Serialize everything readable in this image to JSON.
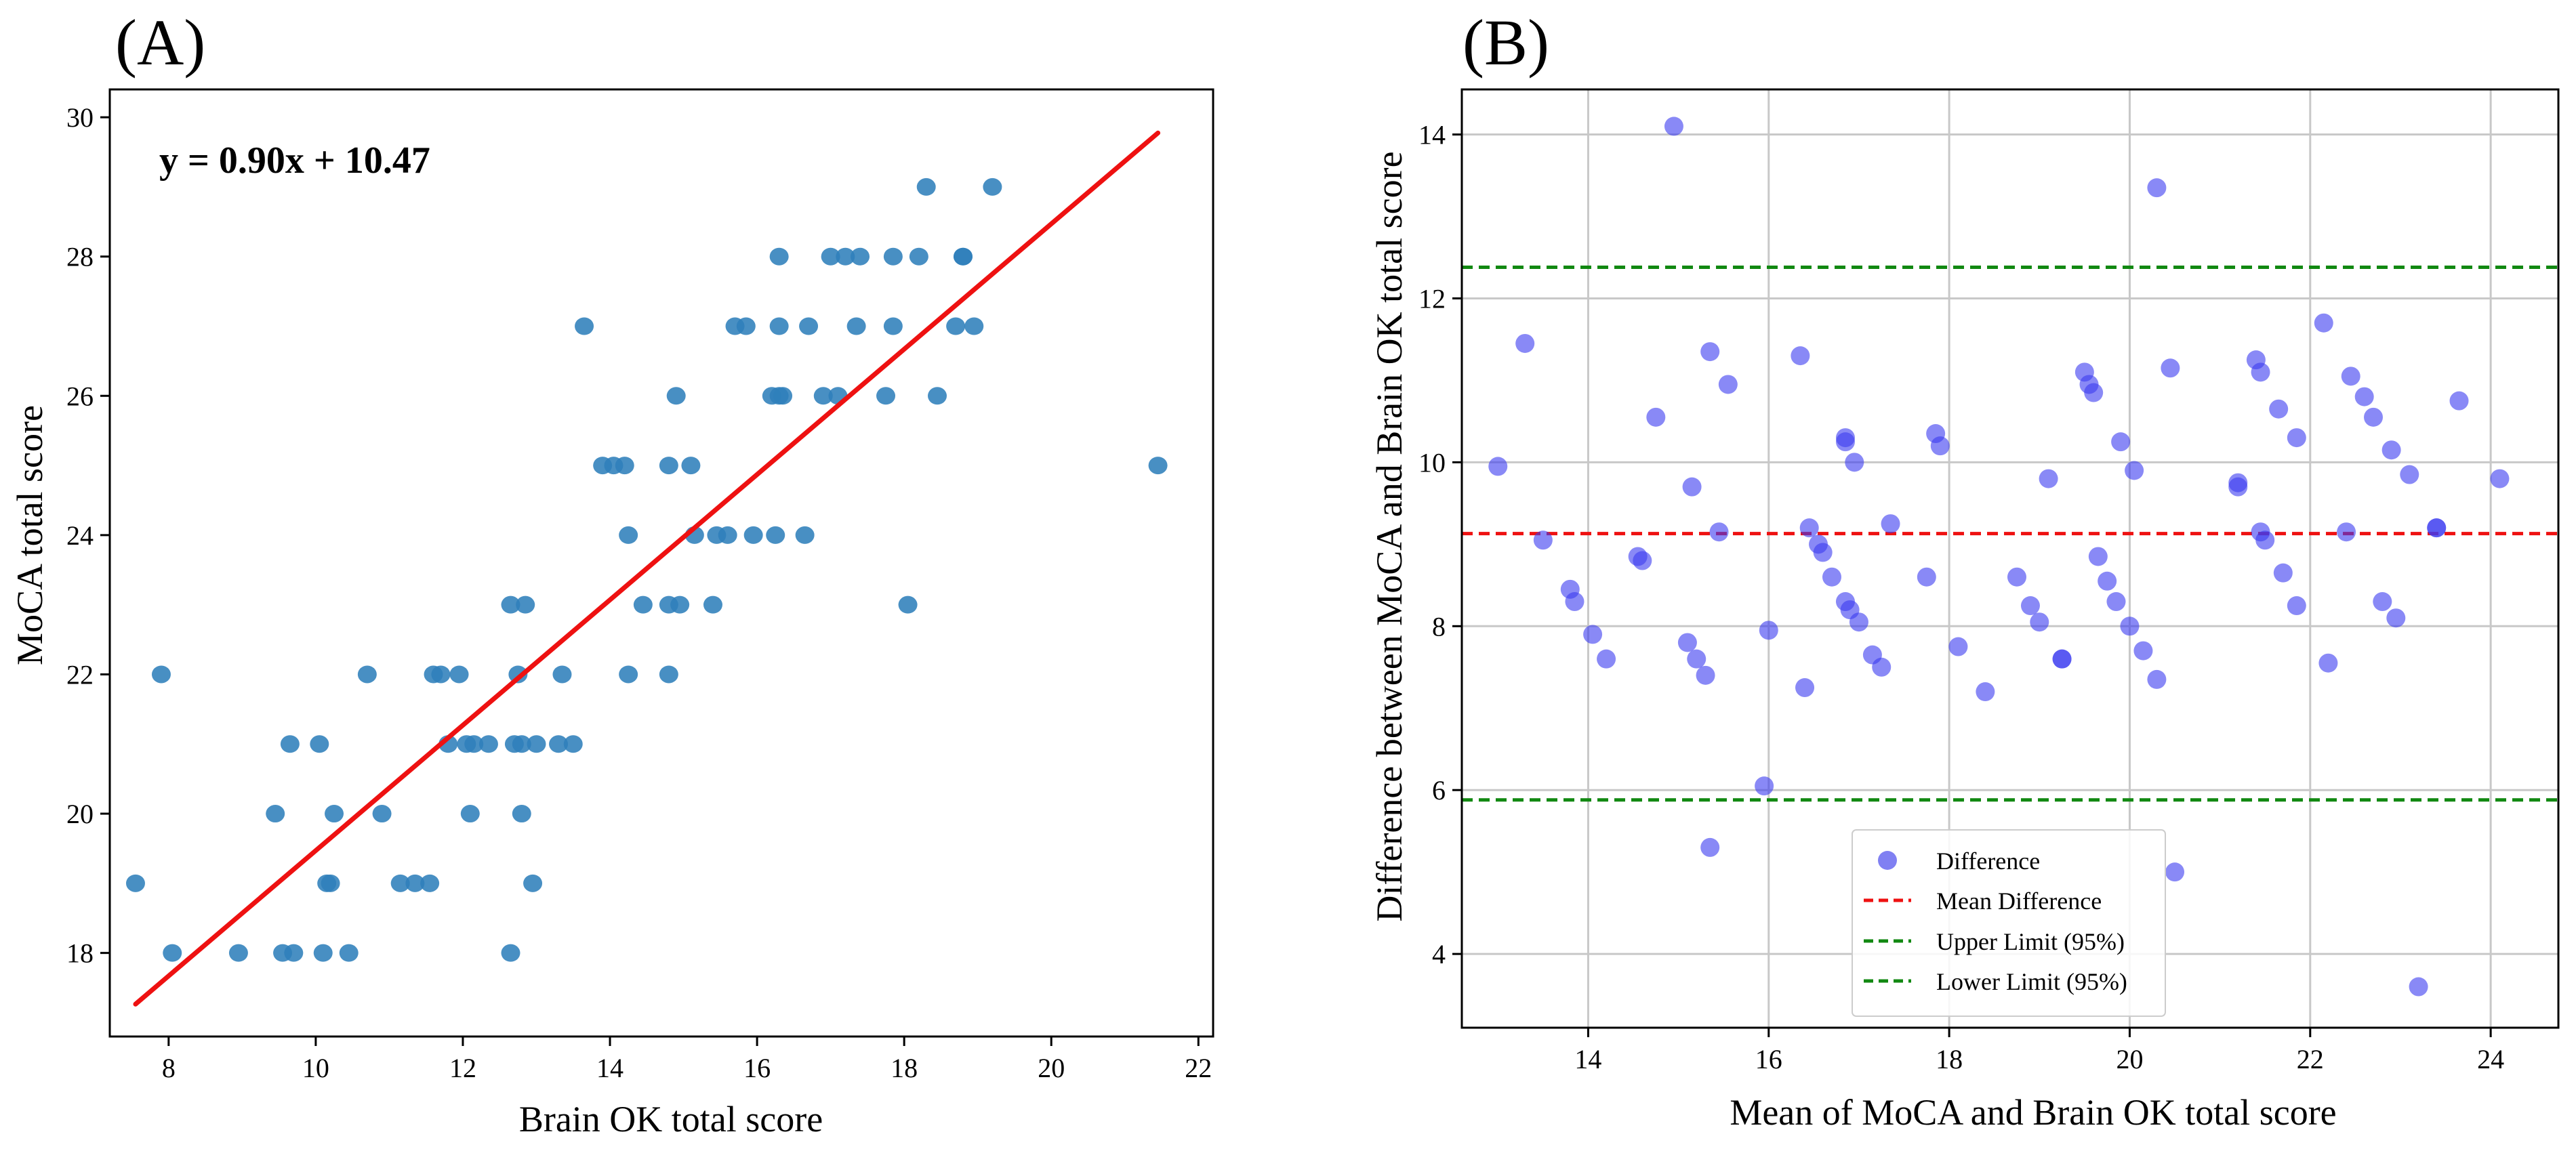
{
  "chart_data": [
    {
      "panel_label": "(A)",
      "type": "scatter",
      "xlabel": "Brain OK total score",
      "ylabel": "MoCA total score",
      "xlim": [
        7.2,
        22.2
      ],
      "ylim": [
        16.8,
        30.4
      ],
      "xticks": [
        8,
        10,
        12,
        14,
        16,
        18,
        20,
        22
      ],
      "yticks": [
        18,
        20,
        22,
        24,
        26,
        28,
        30
      ],
      "grid": false,
      "equation": "y = 0.90x + 10.47",
      "regression": {
        "slope": 0.9,
        "intercept": 10.47,
        "x_range": [
          7.55,
          21.45
        ],
        "color": "#ee1111"
      },
      "point_color": "#2f7fbb",
      "points": [
        [
          7.55,
          19
        ],
        [
          7.9,
          22
        ],
        [
          8.05,
          18
        ],
        [
          8.95,
          18
        ],
        [
          9.45,
          20
        ],
        [
          9.55,
          18
        ],
        [
          9.7,
          18
        ],
        [
          9.65,
          21
        ],
        [
          10.05,
          21
        ],
        [
          10.1,
          18
        ],
        [
          10.15,
          19
        ],
        [
          10.2,
          19
        ],
        [
          10.25,
          20
        ],
        [
          10.45,
          18
        ],
        [
          10.7,
          22
        ],
        [
          10.9,
          20
        ],
        [
          11.15,
          19
        ],
        [
          11.35,
          19
        ],
        [
          11.55,
          19
        ],
        [
          11.6,
          22
        ],
        [
          11.7,
          22
        ],
        [
          11.8,
          21
        ],
        [
          11.95,
          22
        ],
        [
          12.05,
          21
        ],
        [
          12.1,
          20
        ],
        [
          12.15,
          21
        ],
        [
          12.35,
          21
        ],
        [
          12.65,
          18
        ],
        [
          12.65,
          23
        ],
        [
          12.7,
          21
        ],
        [
          12.75,
          22
        ],
        [
          12.8,
          20
        ],
        [
          12.8,
          21
        ],
        [
          12.85,
          23
        ],
        [
          12.95,
          19
        ],
        [
          13.0,
          21
        ],
        [
          13.3,
          21
        ],
        [
          13.35,
          22
        ],
        [
          13.5,
          21
        ],
        [
          13.65,
          27
        ],
        [
          13.9,
          25
        ],
        [
          14.05,
          25
        ],
        [
          14.2,
          25
        ],
        [
          14.25,
          24
        ],
        [
          14.25,
          22
        ],
        [
          14.45,
          23
        ],
        [
          14.8,
          25
        ],
        [
          14.8,
          22
        ],
        [
          14.8,
          23
        ],
        [
          14.9,
          26
        ],
        [
          14.95,
          23
        ],
        [
          15.1,
          25
        ],
        [
          15.15,
          24
        ],
        [
          15.4,
          23
        ],
        [
          15.45,
          24
        ],
        [
          15.6,
          24
        ],
        [
          15.7,
          27
        ],
        [
          15.85,
          27
        ],
        [
          15.95,
          24
        ],
        [
          16.2,
          26
        ],
        [
          16.25,
          24
        ],
        [
          16.3,
          26
        ],
        [
          16.3,
          27
        ],
        [
          16.3,
          28
        ],
        [
          16.35,
          26
        ],
        [
          16.65,
          24
        ],
        [
          16.7,
          27
        ],
        [
          16.9,
          26
        ],
        [
          17.0,
          28
        ],
        [
          17.1,
          26
        ],
        [
          17.2,
          28
        ],
        [
          17.35,
          27
        ],
        [
          17.4,
          28
        ],
        [
          17.75,
          26
        ],
        [
          17.85,
          27
        ],
        [
          17.85,
          28
        ],
        [
          18.05,
          23
        ],
        [
          18.2,
          28
        ],
        [
          18.3,
          29
        ],
        [
          18.45,
          26
        ],
        [
          18.7,
          27
        ],
        [
          18.8,
          28
        ],
        [
          18.8,
          28
        ],
        [
          18.95,
          27
        ],
        [
          19.2,
          29
        ],
        [
          21.45,
          25
        ]
      ]
    },
    {
      "panel_label": "(B)",
      "type": "scatter",
      "xlabel": "Mean of MoCA and Brain OK total score",
      "ylabel": "Difference between MoCA and Brain OK total score",
      "xlim": [
        12.6,
        24.75
      ],
      "ylim": [
        3.1,
        14.55
      ],
      "xticks": [
        14,
        16,
        18,
        20,
        22,
        24
      ],
      "yticks": [
        4,
        6,
        8,
        10,
        12,
        14
      ],
      "grid": true,
      "mean_difference": 9.13,
      "upper_limit": 12.38,
      "lower_limit": 5.88,
      "point_color": "#3b3bf0",
      "legend": {
        "position": "lower-center",
        "items": [
          {
            "label": "Difference",
            "style": "marker",
            "color": "#5555ee"
          },
          {
            "label": "Mean Difference",
            "style": "dashed",
            "color": "#ee1111"
          },
          {
            "label": "Upper Limit (95%)",
            "style": "dashed",
            "color": "#118811"
          },
          {
            "label": "Lower Limit (95%)",
            "style": "dashed",
            "color": "#118811"
          }
        ]
      },
      "points": [
        [
          13.0,
          9.95
        ],
        [
          13.3,
          11.45
        ],
        [
          13.5,
          9.05
        ],
        [
          13.8,
          8.45
        ],
        [
          13.85,
          8.3
        ],
        [
          14.05,
          7.9
        ],
        [
          14.2,
          7.6
        ],
        [
          14.55,
          8.85
        ],
        [
          14.6,
          8.8
        ],
        [
          14.75,
          10.55
        ],
        [
          14.95,
          14.1
        ],
        [
          15.1,
          7.8
        ],
        [
          15.15,
          9.7
        ],
        [
          15.2,
          7.6
        ],
        [
          15.3,
          7.4
        ],
        [
          15.35,
          11.35
        ],
        [
          15.35,
          5.3
        ],
        [
          15.45,
          9.15
        ],
        [
          15.55,
          10.95
        ],
        [
          15.95,
          6.05
        ],
        [
          16.0,
          7.95
        ],
        [
          16.35,
          11.3
        ],
        [
          16.4,
          7.25
        ],
        [
          16.45,
          9.2
        ],
        [
          16.55,
          9.0
        ],
        [
          16.6,
          8.9
        ],
        [
          16.7,
          8.6
        ],
        [
          16.85,
          10.3
        ],
        [
          16.85,
          10.25
        ],
        [
          16.85,
          8.3
        ],
        [
          16.9,
          8.2
        ],
        [
          16.95,
          10.0
        ],
        [
          17.0,
          8.05
        ],
        [
          17.15,
          7.65
        ],
        [
          17.25,
          7.5
        ],
        [
          17.35,
          9.25
        ],
        [
          17.75,
          8.6
        ],
        [
          17.85,
          10.35
        ],
        [
          17.9,
          10.2
        ],
        [
          18.1,
          7.75
        ],
        [
          18.4,
          7.2
        ],
        [
          18.75,
          8.6
        ],
        [
          18.9,
          8.25
        ],
        [
          19.0,
          8.05
        ],
        [
          19.1,
          9.8
        ],
        [
          19.25,
          7.6
        ],
        [
          19.25,
          7.6
        ],
        [
          19.5,
          11.1
        ],
        [
          19.55,
          10.95
        ],
        [
          19.6,
          10.85
        ],
        [
          19.65,
          8.85
        ],
        [
          19.75,
          8.55
        ],
        [
          19.85,
          8.3
        ],
        [
          19.9,
          10.25
        ],
        [
          20.0,
          8.0
        ],
        [
          20.05,
          9.9
        ],
        [
          20.15,
          7.7
        ],
        [
          20.3,
          13.35
        ],
        [
          20.3,
          7.35
        ],
        [
          20.45,
          11.15
        ],
        [
          20.5,
          5.0
        ],
        [
          21.2,
          9.75
        ],
        [
          21.2,
          9.7
        ],
        [
          21.4,
          11.25
        ],
        [
          21.45,
          11.1
        ],
        [
          21.45,
          9.15
        ],
        [
          21.5,
          9.05
        ],
        [
          21.65,
          10.65
        ],
        [
          21.7,
          8.65
        ],
        [
          21.85,
          10.3
        ],
        [
          21.85,
          8.25
        ],
        [
          22.15,
          11.7
        ],
        [
          22.2,
          7.55
        ],
        [
          22.4,
          9.15
        ],
        [
          22.45,
          11.05
        ],
        [
          22.6,
          10.8
        ],
        [
          22.7,
          10.55
        ],
        [
          22.8,
          8.3
        ],
        [
          22.9,
          10.15
        ],
        [
          22.95,
          8.1
        ],
        [
          23.1,
          9.85
        ],
        [
          23.2,
          3.6
        ],
        [
          23.4,
          9.2
        ],
        [
          23.4,
          9.2
        ],
        [
          23.65,
          10.75
        ],
        [
          24.1,
          9.8
        ]
      ]
    }
  ]
}
